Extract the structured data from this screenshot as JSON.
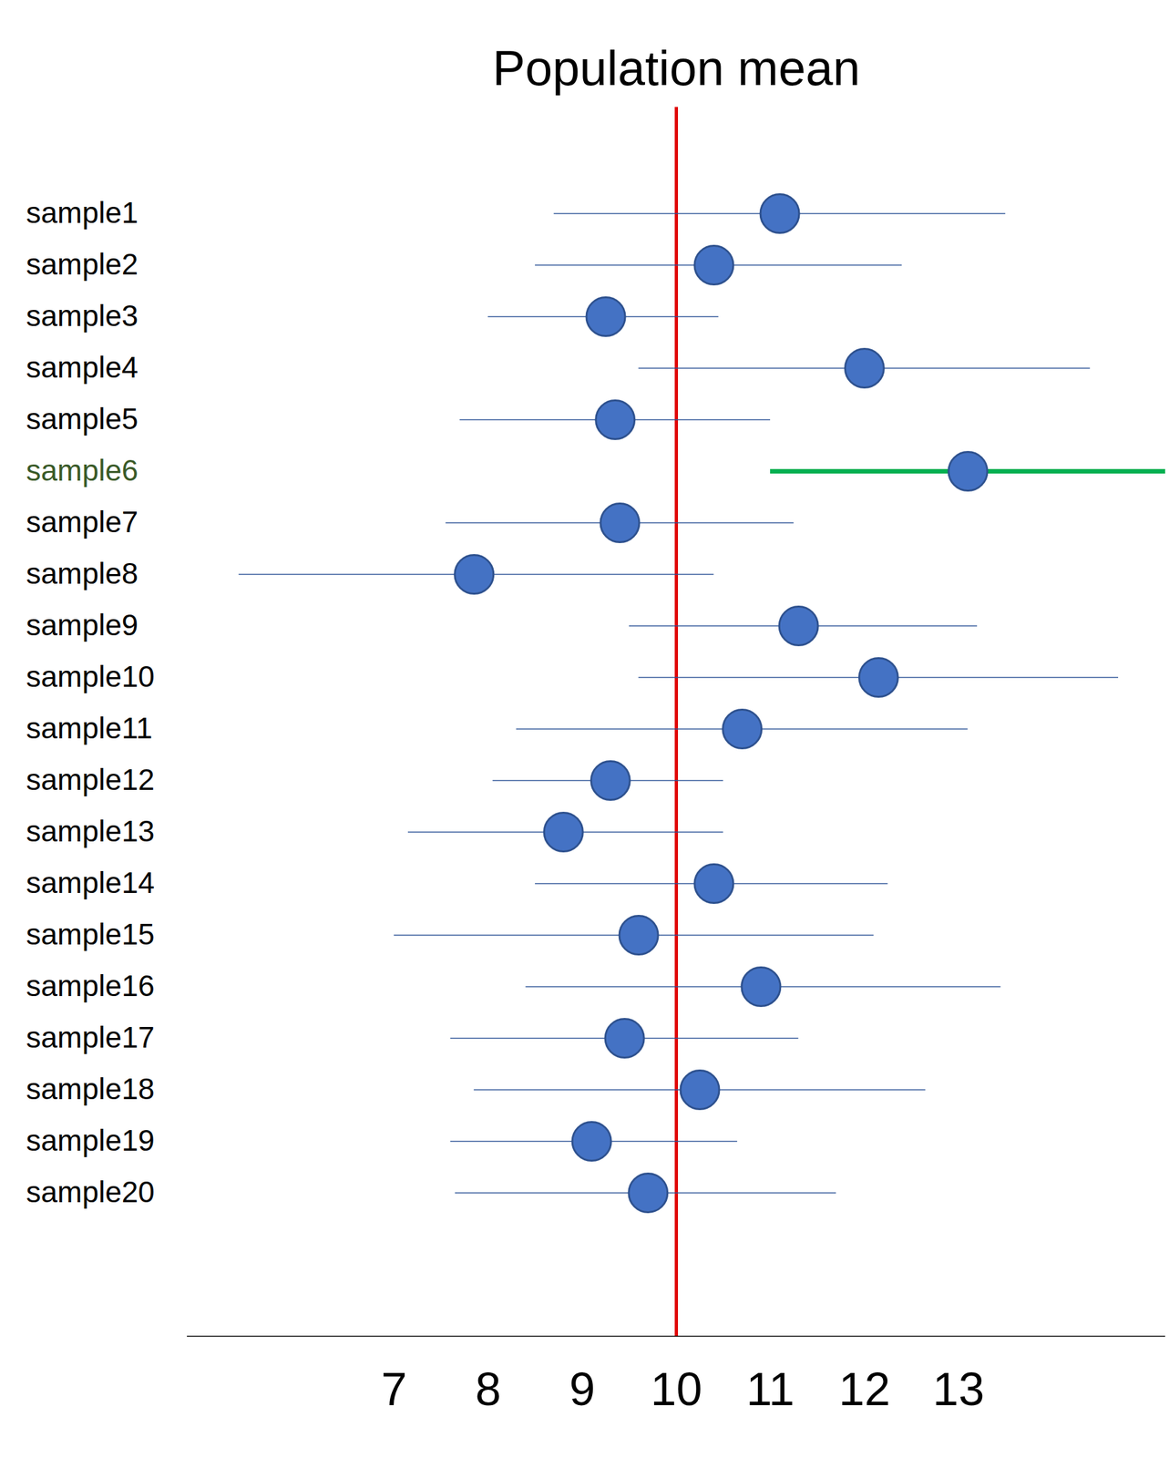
{
  "chart_data": {
    "type": "interval",
    "title": "Population mean",
    "categories": [
      "sample1",
      "sample2",
      "sample3",
      "sample4",
      "sample5",
      "sample6",
      "sample7",
      "sample8",
      "sample9",
      "sample10",
      "sample11",
      "sample12",
      "sample13",
      "sample14",
      "sample15",
      "sample16",
      "sample17",
      "sample18",
      "sample19",
      "sample20"
    ],
    "values": [
      11.1,
      10.4,
      9.25,
      12.0,
      9.35,
      13.1,
      9.4,
      7.85,
      11.3,
      12.15,
      10.7,
      9.3,
      8.8,
      10.4,
      9.6,
      10.9,
      9.45,
      10.25,
      9.1,
      9.7
    ],
    "ci_lower": [
      8.7,
      8.5,
      8.0,
      9.6,
      7.7,
      11.0,
      7.55,
      5.35,
      9.5,
      9.6,
      8.3,
      8.05,
      7.15,
      8.5,
      7.0,
      8.4,
      7.6,
      7.85,
      7.6,
      7.65
    ],
    "ci_upper": [
      13.5,
      12.4,
      10.45,
      14.4,
      11.0,
      15.4,
      11.25,
      10.4,
      13.2,
      14.7,
      13.1,
      10.5,
      10.5,
      12.25,
      12.1,
      13.45,
      11.3,
      12.65,
      10.65,
      11.7
    ],
    "population_mean": 10,
    "color": "#4472c4",
    "colors": [
      "#2f5597",
      "#2f5597",
      "#2f5597",
      "#2f5597",
      "#2f5597",
      "#00b050",
      "#2f5597",
      "#2f5597",
      "#2f5597",
      "#2f5597",
      "#2f5597",
      "#2f5597",
      "#2f5597",
      "#2f5597",
      "#2f5597",
      "#2f5597",
      "#2f5597",
      "#2f5597",
      "#2f5597",
      "#2f5597"
    ],
    "xlim": [
      4.8,
      15.2
    ],
    "xticks": [
      7,
      8,
      9,
      10,
      11,
      12,
      13
    ],
    "grid": false
  }
}
